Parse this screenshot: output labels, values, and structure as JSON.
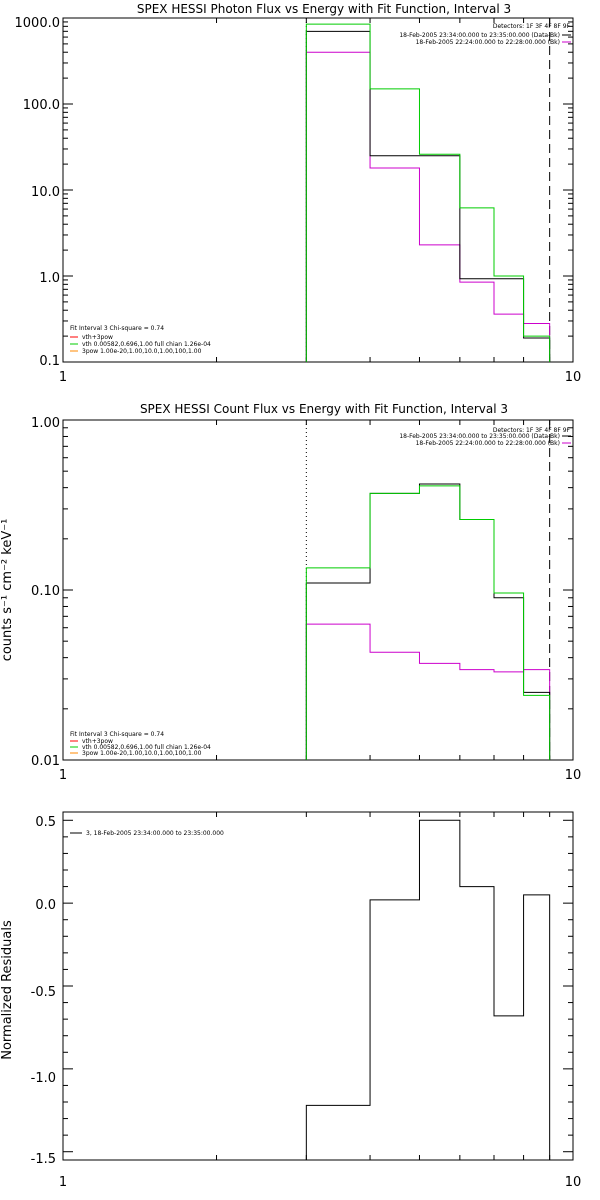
{
  "colors": {
    "data": "#000000",
    "total": "#00cc00",
    "bkg": "#cc00cc",
    "comp2": "#ff8800",
    "axis": "#000000"
  },
  "chart_data": [
    {
      "type": "line",
      "title": "SPEX HESSI Photon Flux vs Energy with Fit Function, Interval 3",
      "xlabel": "",
      "ylabel": "",
      "x_scale": "log",
      "y_scale": "log",
      "xlim": [
        1,
        10
      ],
      "ylim": [
        0.1,
        1000
      ],
      "x_ticks": [
        "1",
        "10"
      ],
      "y_ticks": [
        "0.1",
        "1.0",
        "10.0",
        "100.0",
        "1000.0"
      ],
      "edges": [
        3,
        4,
        5,
        6,
        7,
        8,
        9
      ],
      "series": [
        {
          "key": "data",
          "values": [
            700,
            25,
            25,
            0.93,
            0.93,
            0.19
          ]
        },
        {
          "key": "total",
          "values": [
            850,
            150,
            26,
            6.2,
            1.0,
            0.2
          ]
        },
        {
          "key": "bkg",
          "values": [
            400,
            18,
            2.3,
            0.85,
            0.36,
            0.28
          ]
        }
      ],
      "vlines": [
        {
          "x": 3,
          "style": "dotted"
        },
        {
          "x": 9,
          "style": "dashed"
        }
      ],
      "info": [
        "Detectors: 1F 3F 4F 8F 9F",
        "18-Feb-2005 23:34:00.000 to 23:35:00.000 (Data-Bk)",
        "18-Feb-2005 22:24:00.000 to 22:28:00.000 (Bk)"
      ],
      "legend": [
        "Fit Interval 3   Chi-square = 0.74",
        "vth+3pow",
        "vth 0.00582,0.696,1.00   full chian 1.26e-04",
        "3pow 1.00e-20,1.00,10.0,1.00,100,1.00"
      ]
    },
    {
      "type": "line",
      "title": "SPEX HESSI Count Flux vs Energy with Fit Function, Interval 3",
      "xlabel": "",
      "ylabel": "counts s⁻¹ cm⁻² keV⁻¹",
      "x_scale": "log",
      "y_scale": "log",
      "xlim": [
        1,
        10
      ],
      "ylim": [
        0.01,
        1
      ],
      "x_ticks": [
        "1",
        "10"
      ],
      "y_ticks": [
        "0.01",
        "0.10",
        "1.00"
      ],
      "edges": [
        3,
        4,
        5,
        6,
        7,
        8,
        9
      ],
      "series": [
        {
          "key": "data",
          "values": [
            0.11,
            0.37,
            0.42,
            0.26,
            0.09,
            0.025
          ]
        },
        {
          "key": "total",
          "values": [
            0.135,
            0.37,
            0.41,
            0.26,
            0.096,
            0.024
          ]
        },
        {
          "key": "bkg",
          "values": [
            0.063,
            0.043,
            0.037,
            0.034,
            0.033,
            0.034
          ]
        }
      ],
      "vlines": [
        {
          "x": 3,
          "style": "dotted"
        },
        {
          "x": 9,
          "style": "dashed"
        }
      ],
      "info": [
        "Detectors: 1F 3F 4F 8F 9F",
        "18-Feb-2005 23:34:00.000 to 23:35:00.000 (Data-Bk)",
        "18-Feb-2005 22:24:00.000 to 22:28:00.000 (Bk)"
      ],
      "legend": [
        "Fit Interval 3   Chi-square = 0.74",
        "vth+3pow",
        "vth 0.00582,0.696,1.00   full chian 1.26e-04",
        "3pow 1.00e-20,1.00,10.0,1.00,100,1.00"
      ]
    },
    {
      "type": "line",
      "title": "",
      "xlabel": "",
      "ylabel": "Normalized Residuals",
      "x_scale": "log",
      "y_scale": "linear",
      "xlim": [
        1,
        10
      ],
      "ylim": [
        -1.55,
        0.55
      ],
      "x_ticks": [
        "1",
        "10"
      ],
      "y_ticks": [
        "-1.5",
        "-1.0",
        "-0.5",
        "0.0",
        "0.5"
      ],
      "edges": [
        3,
        4,
        5,
        6,
        7,
        8,
        9
      ],
      "series": [
        {
          "key": "data",
          "values": [
            -1.22,
            0.02,
            0.5,
            0.1,
            -0.68,
            0.05
          ]
        }
      ],
      "vlines": [],
      "info": [],
      "legend": [
        "3, 18-Feb-2005 23:34:00.000 to 23:35:00.000"
      ]
    }
  ]
}
